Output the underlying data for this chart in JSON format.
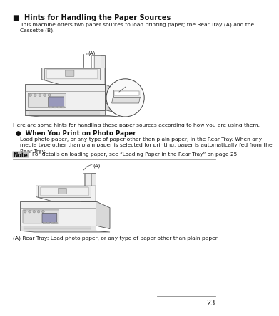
{
  "page_bg": "#ffffff",
  "page_number": "23",
  "title": "■  Hints for Handling the Paper Sources",
  "title_fontsize": 7.0,
  "intro_text": "This machine offers two paper sources to load printing paper; the Rear Tray (A) and the\nCassette (B).",
  "intro_fontsize": 5.4,
  "hint_text": "Here are some hints for handling these paper sources according to how you are using them.",
  "hint_fontsize": 5.4,
  "sub_bullet": "●  When You Print on Photo Paper",
  "sub_bullet_fontsize": 6.3,
  "body_text1": "Load photo paper, or any type of paper other than plain paper, in the Rear Tray. When any\nmedia type other than plain paper is selected for printing, paper is automatically fed from the\nRear Tray.",
  "body_fontsize": 5.4,
  "note_label": "Note",
  "note_text": "For details on loading paper, see “Loading Paper in the Rear Tray” on page 25.",
  "note_fontsize": 5.3,
  "caption_text": "(A) Rear Tray: Load photo paper, or any type of paper other than plain paper",
  "caption_fontsize": 5.4,
  "line_color": "#999999",
  "note_bg": "#bbbbbb"
}
